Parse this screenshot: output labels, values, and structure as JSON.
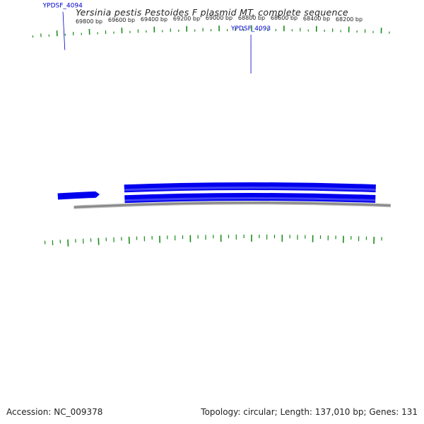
{
  "title": "Yersinia pestis Pestoides F plasmid MT, complete sequence",
  "footer": {
    "accession": "Accession: NC_009378",
    "stats": "Topology: circular; Length: 137,010 bp; Genes: 131"
  },
  "colors": {
    "gene": "#0000ee",
    "gene_highlight": "#7777ff",
    "backbone": "#888888",
    "tick": "#1a8c1a",
    "label": "#0000cc"
  },
  "tick_labels": [
    {
      "bp": 69800,
      "label": "69800 bp"
    },
    {
      "bp": 69600,
      "label": "69600 bp"
    },
    {
      "bp": 69400,
      "label": "69400 bp"
    },
    {
      "bp": 69200,
      "label": "69200 bp"
    },
    {
      "bp": 69000,
      "label": "69000 bp"
    },
    {
      "bp": 68800,
      "label": "68800 bp"
    },
    {
      "bp": 68600,
      "label": "68600 bp"
    },
    {
      "bp": 68400,
      "label": "68400 bp"
    },
    {
      "bp": 68200,
      "label": "68200 bp"
    }
  ],
  "genes": [
    {
      "name": "YPDSF_4094",
      "strand": "inner",
      "start_bp": 70050,
      "end_bp": 69780
    },
    {
      "name": "YPDSF_4093",
      "strand": "outer",
      "start_bp": 69620,
      "end_bp": 68000
    }
  ]
}
